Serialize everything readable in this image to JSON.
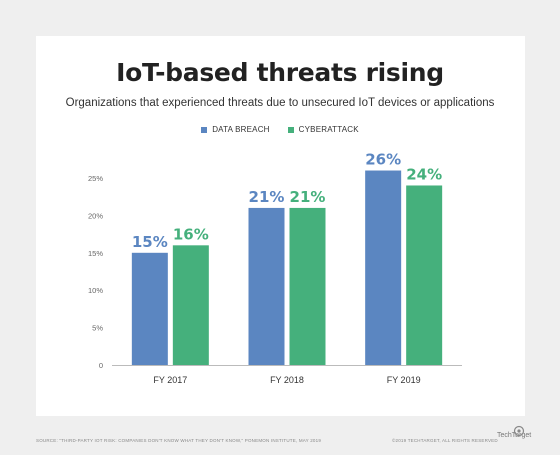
{
  "title": "IoT-based threats rising",
  "subtitle": "Organizations that experienced threats due to unsecured IoT devices or applications",
  "chart_data": {
    "type": "bar",
    "categories": [
      "FY 2017",
      "FY 2018",
      "FY 2019"
    ],
    "series": [
      {
        "name": "DATA BREACH",
        "values": [
          15,
          21,
          26
        ],
        "color": "#5b86c1"
      },
      {
        "name": "CYBERATTACK",
        "values": [
          16,
          21,
          24
        ],
        "color": "#45b07c"
      }
    ],
    "data_labels": [
      [
        "15%",
        "21%",
        "26%"
      ],
      [
        "16%",
        "21%",
        "24%"
      ]
    ],
    "y_ticks": [
      "0",
      "5%",
      "10%",
      "15%",
      "20%",
      "25%"
    ],
    "ylim": [
      0,
      25
    ],
    "grid": false,
    "legend_position": "top-center",
    "xlabel": "",
    "ylabel": ""
  },
  "footer": {
    "source": "SOURCE: \"THIRD-PARTY IOT RISK: COMPANIES DON'T KNOW WHAT THEY DON'T KNOW,\" PONEMON INSTITUTE, MAY 2019",
    "rights": "©2019 TECHTARGET, ALL RIGHTS RESERVED",
    "brand": "TechTarget",
    "brand_icon": "techtarget-logo-icon"
  }
}
